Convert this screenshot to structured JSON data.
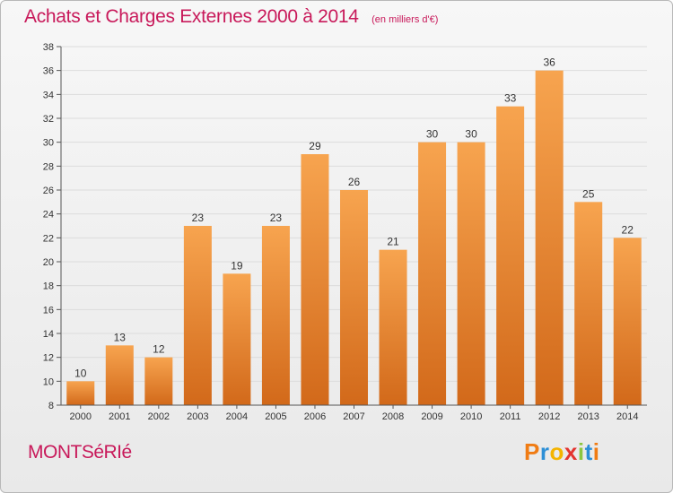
{
  "header": {
    "title": "Achats et Charges Externes 2000 à 2014",
    "subtitle": "(en milliers d'€)"
  },
  "footer": {
    "commune": "MONTSéRIé",
    "logo_letters": [
      "P",
      "r",
      "o",
      "x",
      "i",
      "t",
      "i"
    ],
    "logo_colors": [
      "#f07c14",
      "#2d8fd6",
      "#f4b400",
      "#e3342f",
      "#8cc63f",
      "#2d8fd6",
      "#f07c14"
    ]
  },
  "chart_data": {
    "type": "bar",
    "categories": [
      "2000",
      "2001",
      "2002",
      "2003",
      "2004",
      "2005",
      "2006",
      "2007",
      "2008",
      "2009",
      "2010",
      "2011",
      "2012",
      "2013",
      "2014"
    ],
    "values": [
      10,
      13,
      12,
      23,
      19,
      23,
      29,
      26,
      21,
      30,
      30,
      33,
      36,
      25,
      22
    ],
    "title": "Achats et Charges Externes 2000 à 2014",
    "subtitle": "(en milliers d'€)",
    "xlabel": "",
    "ylabel": "",
    "ylim": [
      8,
      38
    ],
    "yticks": [
      8,
      10,
      12,
      14,
      16,
      18,
      20,
      22,
      24,
      26,
      28,
      30,
      32,
      34,
      36,
      38
    ],
    "grid": true,
    "bar_color": "#f28e2b"
  }
}
